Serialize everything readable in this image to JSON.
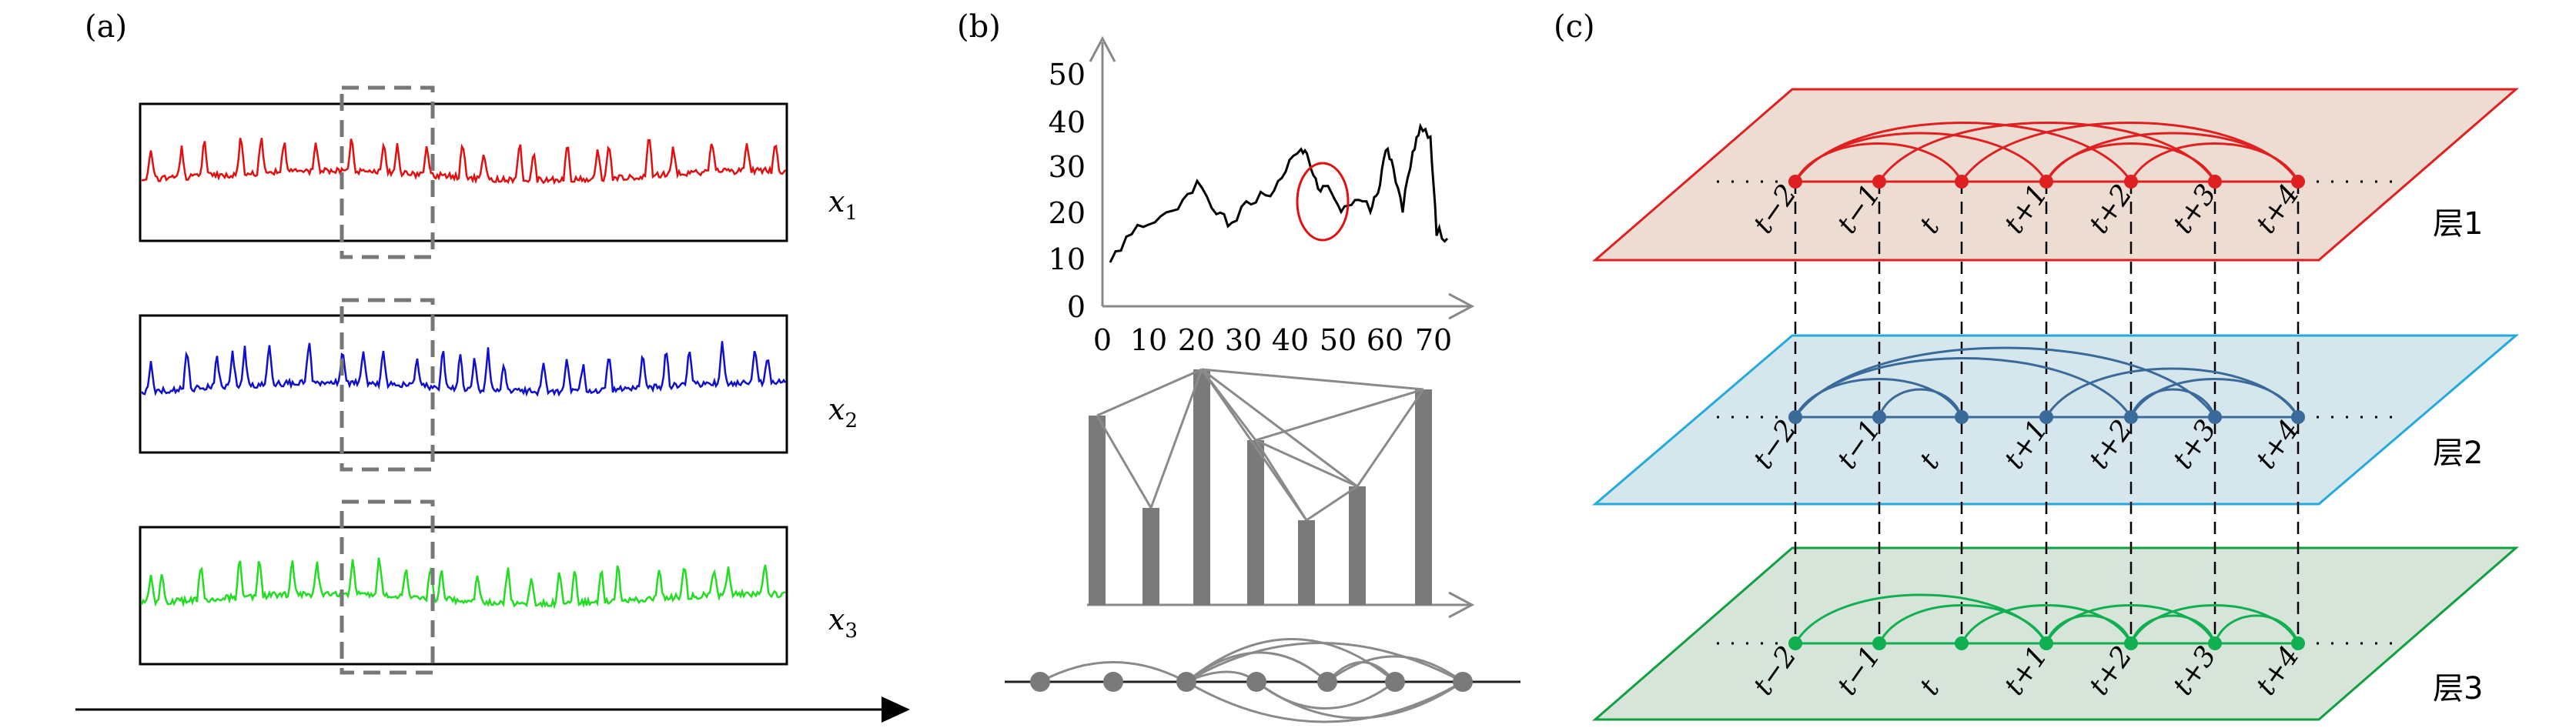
{
  "panel_a": {
    "label": "(a)",
    "series_labels": [
      {
        "name": "x",
        "sub": "1",
        "color": "#e01010"
      },
      {
        "name": "x",
        "sub": "2",
        "color": "#1010cc"
      },
      {
        "name": "x",
        "sub": "3",
        "color": "#22dd22"
      }
    ]
  },
  "panel_b": {
    "label": "(b)",
    "y_ticks": [
      "0",
      "10",
      "20",
      "30",
      "40",
      "50"
    ],
    "x_ticks": [
      "0",
      "10",
      "20",
      "30",
      "40",
      "50",
      "60",
      "70"
    ]
  },
  "panel_c": {
    "label": "(c)",
    "layers": [
      {
        "name": "层1",
        "color": "#e02020",
        "fill": "#ecdcd2"
      },
      {
        "name": "层2",
        "color": "#22aadd",
        "fill": "#d5e6ec"
      },
      {
        "name": "层3",
        "color": "#10a040",
        "fill": "#d6e4da"
      }
    ],
    "time_labels": [
      "t−2",
      "t−1",
      "t",
      "t+1",
      "t+2",
      "t+3",
      "t+4"
    ]
  }
}
